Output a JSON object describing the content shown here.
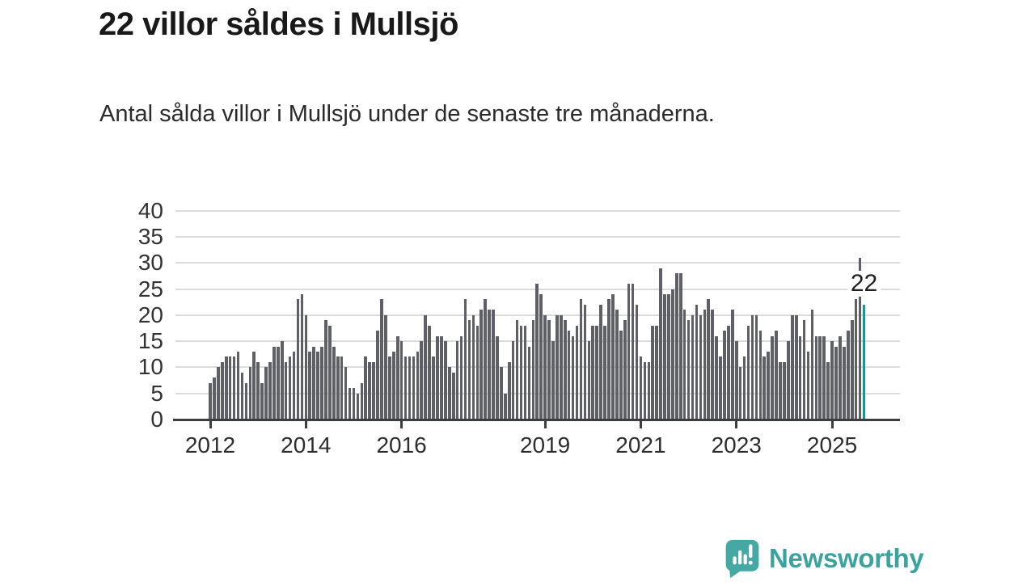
{
  "header": {
    "title": "22 villor såldes i Mullsjö",
    "subtitle": "Antal sålda villor i Mullsjö under de senaste tre månaderna."
  },
  "chart_data": {
    "type": "bar",
    "title": "22 villor såldes i Mullsjö",
    "subtitle": "Antal sålda villor i Mullsjö under de senaste tre månaderna.",
    "period": "monthly",
    "start_year": 2012,
    "values": [
      7,
      8,
      10,
      11,
      12,
      12,
      12,
      13,
      9,
      7,
      10,
      13,
      11,
      7,
      10,
      11,
      14,
      14,
      15,
      11,
      12,
      13,
      23,
      24,
      20,
      13,
      14,
      13,
      14,
      19,
      18,
      14,
      12,
      12,
      10,
      6,
      6,
      5,
      7,
      12,
      11,
      11,
      17,
      23,
      20,
      12,
      13,
      16,
      15,
      12,
      12,
      12,
      13,
      15,
      20,
      18,
      12,
      16,
      16,
      15,
      10,
      9,
      15,
      16,
      23,
      19,
      20,
      18,
      21,
      23,
      21,
      21,
      16,
      10,
      5,
      11,
      15,
      19,
      18,
      18,
      14,
      19,
      26,
      24,
      20,
      19,
      15,
      20,
      20,
      19,
      17,
      16,
      18,
      23,
      22,
      15,
      18,
      18,
      22,
      18,
      23,
      24,
      21,
      17,
      19,
      26,
      26,
      22,
      12,
      11,
      11,
      18,
      18,
      29,
      24,
      24,
      25,
      28,
      28,
      21,
      19,
      20,
      22,
      20,
      21,
      23,
      21,
      16,
      12,
      17,
      18,
      21,
      15,
      10,
      12,
      18,
      20,
      20,
      17,
      12,
      13,
      16,
      17,
      11,
      11,
      15,
      20,
      20,
      16,
      19,
      13,
      21,
      16,
      16,
      16,
      11,
      15,
      14,
      16,
      14,
      17,
      19,
      23,
      31,
      22
    ],
    "highlight_last_index": true,
    "last_value_label": "22",
    "y_ticks": [
      0,
      5,
      10,
      15,
      20,
      25,
      30,
      35,
      40
    ],
    "ylim": [
      0,
      40
    ],
    "x_tick_years": [
      2012,
      2014,
      2016,
      2019,
      2021,
      2023,
      2025
    ],
    "grid": true,
    "legend": "none",
    "bar_color": "#5f5f66",
    "highlight_color": "#00a29a",
    "axis_color": "#3d3d3d",
    "gridline_color": "#dbdbdb"
  },
  "branding": {
    "logo_text": "Newsworthy",
    "logo_color": "#3ba39e",
    "logo_icon": "newsworthy-bars-exclamation-icon"
  }
}
